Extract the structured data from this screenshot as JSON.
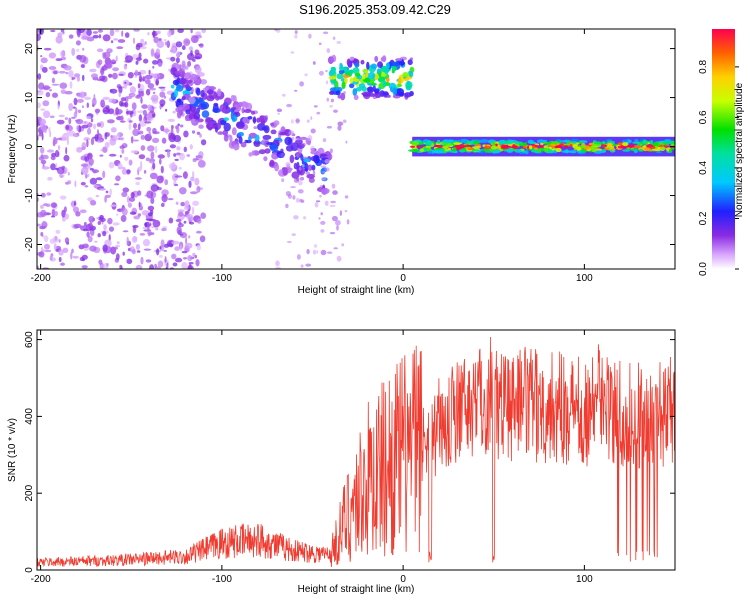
{
  "figure_title": "S196.2025.353.09.42.C29",
  "chart_data": [
    {
      "type": "heatmap",
      "title": "S196.2025.353.09.42.C29",
      "xlabel": "Height of straight line (km)",
      "ylabel": "Frequency (Hz)",
      "xlim": [
        -202,
        150
      ],
      "ylim": [
        -25,
        24
      ],
      "xticks": [
        -200,
        -100,
        0,
        100
      ],
      "yticks": [
        -20,
        -10,
        0,
        10,
        20
      ],
      "colorbar": {
        "label": "Normalized spectral amplitude",
        "range": [
          0,
          0.95
        ],
        "ticks": [
          0.0,
          0.2,
          0.4,
          0.6,
          0.8
        ]
      },
      "features": [
        {
          "name": "scattered noise",
          "x_range": [
            -202,
            -120
          ],
          "freq_range": [
            -25,
            24
          ],
          "amplitude": 0.05
        },
        {
          "name": "descending trace",
          "x_range": [
            -128,
            -40
          ],
          "freq_start": 12,
          "freq_end": -6,
          "amplitude": 0.25
        },
        {
          "name": "upper trace",
          "x_range": [
            -40,
            5
          ],
          "freq": 14,
          "amplitude": 0.6
        },
        {
          "name": "constant trace",
          "x_range": [
            5,
            150
          ],
          "freq": 0,
          "amplitude": 0.85
        }
      ]
    },
    {
      "type": "line",
      "xlabel": "Height of straight line (km)",
      "ylabel": "SNR (10 * v/v)",
      "xlim": [
        -202,
        150
      ],
      "ylim": [
        0,
        625
      ],
      "xticks": [
        -200,
        -100,
        0,
        100
      ],
      "yticks": [
        0,
        200,
        400,
        600
      ],
      "series": [
        {
          "name": "SNR",
          "color": "#f03c30",
          "x": [
            -200,
            -160,
            -120,
            -100,
            -80,
            -60,
            -40,
            -30,
            -20,
            -10,
            0,
            10,
            20,
            30,
            40,
            50,
            60,
            80,
            100,
            120,
            140,
            150
          ],
          "y": [
            20,
            25,
            35,
            70,
            80,
            50,
            40,
            150,
            230,
            270,
            300,
            330,
            380,
            420,
            440,
            440,
            435,
            425,
            415,
            405,
            400,
            420
          ]
        }
      ]
    }
  ]
}
